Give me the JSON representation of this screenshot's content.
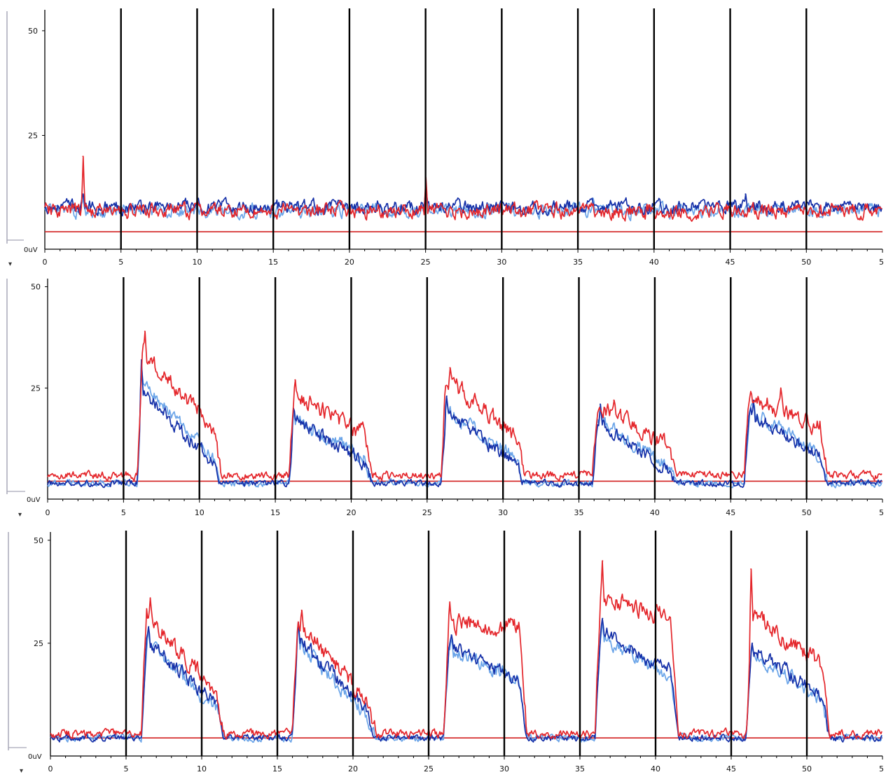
{
  "colors": {
    "background": "#ffffff",
    "axis": "#000000",
    "marker": "#000000",
    "baseline": "#d22020",
    "series_red": "#e4262b",
    "series_dark_blue": "#1530a8",
    "series_light_blue": "#6aa4e8",
    "frame": "#a8a8b8"
  },
  "chart_data": [
    {
      "type": "line",
      "panel": "top",
      "ylim": [
        0,
        55
      ],
      "yticks": [
        {
          "value": 50,
          "label": "50"
        },
        {
          "value": 25,
          "label": "25"
        }
      ],
      "baseline_label": "0uV",
      "xlim": [
        0,
        55
      ],
      "xticks": [
        "0",
        "5",
        "10",
        "15",
        "20",
        "25",
        "30",
        "35",
        "40",
        "45",
        "50",
        "5"
      ],
      "marker_lines_x": [
        5,
        10,
        15,
        20,
        25,
        30,
        35,
        40,
        45,
        50
      ],
      "baseline_y": 2,
      "series": [
        {
          "color": "#6aa4e8",
          "rest_level": 7,
          "noise": 1.6,
          "bursts": [],
          "x": [
            2.5,
            25,
            36
          ],
          "y": [
            10,
            12,
            10
          ]
        },
        {
          "color": "#1530a8",
          "rest_level": 8,
          "noise": 1.6,
          "bursts": [],
          "x": [
            2.5,
            25,
            46
          ],
          "y": [
            11,
            13,
            11
          ]
        },
        {
          "color": "#e4262b",
          "rest_level": 7,
          "noise": 1.8,
          "bursts": [],
          "x": [
            2.5,
            25
          ],
          "y": [
            20,
            15
          ]
        }
      ]
    },
    {
      "type": "line",
      "panel": "middle",
      "ylim": [
        0,
        52
      ],
      "yticks": [
        {
          "value": 50,
          "label": "50"
        },
        {
          "value": 25,
          "label": "25"
        }
      ],
      "baseline_label": "0uV",
      "xlim": [
        0,
        55
      ],
      "xticks": [
        "0",
        "5",
        "10",
        "15",
        "20",
        "25",
        "30",
        "35",
        "40",
        "45",
        "50",
        "5"
      ],
      "marker_lines_x": [
        5,
        10,
        15,
        20,
        25,
        30,
        35,
        40,
        45,
        50
      ],
      "baseline_y": 2,
      "series": [
        {
          "color": "#6aa4e8",
          "rest_level": 1.5,
          "noise": 0.8,
          "bursts": [
            [
              5.9,
              10.9,
              26,
              6
            ],
            [
              15.9,
              20.9,
              17,
              6
            ],
            [
              25.9,
              30.9,
              19,
              6
            ],
            [
              35.9,
              40.9,
              17,
              4
            ],
            [
              45.9,
              50.9,
              19,
              7
            ]
          ],
          "x": [
            6.2,
            16.2,
            26.3,
            36.4,
            46.5
          ],
          "y": [
            31,
            19,
            22,
            20,
            21
          ]
        },
        {
          "color": "#1530a8",
          "rest_level": 1.5,
          "noise": 0.8,
          "bursts": [
            [
              5.9,
              10.9,
              24,
              5
            ],
            [
              15.9,
              20.9,
              17,
              5
            ],
            [
              25.9,
              30.9,
              18,
              5
            ],
            [
              35.9,
              40.9,
              16,
              3
            ],
            [
              45.9,
              50.9,
              18,
              7
            ]
          ],
          "x": [
            6.2,
            16.2,
            26.3,
            36.4,
            46.5
          ],
          "y": [
            32,
            20,
            23,
            21,
            22
          ]
        },
        {
          "color": "#e4262b",
          "rest_level": 3.5,
          "noise": 1.0,
          "bursts": [
            [
              5.9,
              10.9,
              32,
              12
            ],
            [
              15.9,
              20.9,
              21,
              10
            ],
            [
              25.9,
              30.9,
              25,
              9
            ],
            [
              35.9,
              40.9,
              18,
              7
            ],
            [
              45.9,
              50.9,
              20,
              12
            ]
          ],
          "x": [
            6.4,
            16.3,
            26.5,
            37.3,
            48.3
          ],
          "y": [
            39,
            27,
            30,
            22,
            25
          ]
        }
      ]
    },
    {
      "type": "line",
      "panel": "bottom",
      "ylim": [
        0,
        52
      ],
      "yticks": [
        {
          "value": 50,
          "label": "50"
        },
        {
          "value": 25,
          "label": "25"
        }
      ],
      "baseline_label": "0uV",
      "xlim": [
        0,
        55
      ],
      "xticks": [
        "0",
        "5",
        "10",
        "15",
        "20",
        "25",
        "30",
        "35",
        "40",
        "45",
        "50",
        "5"
      ],
      "marker_lines_x": [
        5,
        10,
        15,
        20,
        25,
        30,
        35,
        40,
        45,
        50
      ],
      "baseline_y": 2,
      "series": [
        {
          "color": "#6aa4e8",
          "rest_level": 2,
          "noise": 0.8,
          "bursts": [
            [
              6,
              11,
              24,
              7
            ],
            [
              16,
              21,
              25,
              5
            ],
            [
              26,
              31,
              22,
              14
            ],
            [
              36,
              41,
              25,
              15
            ],
            [
              46,
              51,
              22,
              9
            ]
          ],
          "x": [
            6.5,
            16.4,
            26.5,
            36.5,
            46.4
          ],
          "y": [
            28,
            30,
            26,
            30,
            24
          ]
        },
        {
          "color": "#1530a8",
          "rest_level": 2,
          "noise": 0.8,
          "bursts": [
            [
              6,
              11,
              25,
              8
            ],
            [
              16,
              21,
              26,
              6
            ],
            [
              26,
              31,
              23,
              14
            ],
            [
              36,
              41,
              27,
              16
            ],
            [
              46,
              51,
              23,
              10
            ]
          ],
          "x": [
            6.5,
            16.4,
            26.5,
            36.5,
            46.4
          ],
          "y": [
            29,
            30,
            27,
            31,
            25
          ]
        },
        {
          "color": "#e4262b",
          "rest_level": 3,
          "noise": 1.0,
          "bursts": [
            [
              6,
              11,
              30,
              10
            ],
            [
              16,
              21,
              29,
              8
            ],
            [
              26,
              31,
              27,
              26
            ],
            [
              36,
              41,
              34,
              28
            ],
            [
              46,
              51,
              30,
              17
            ]
          ],
          "x": [
            6.6,
            16.6,
            26.4,
            36.5,
            46.3
          ],
          "y": [
            36,
            33,
            35,
            45,
            43
          ]
        }
      ]
    }
  ]
}
